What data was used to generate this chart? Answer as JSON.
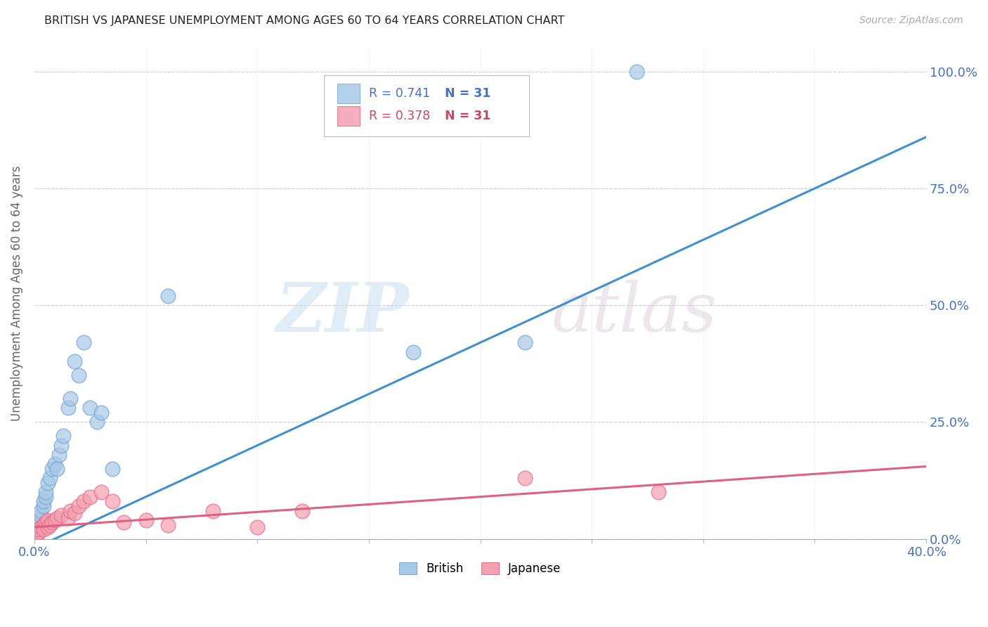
{
  "title": "BRITISH VS JAPANESE UNEMPLOYMENT AMONG AGES 60 TO 64 YEARS CORRELATION CHART",
  "source": "Source: ZipAtlas.com",
  "ylabel": "Unemployment Among Ages 60 to 64 years",
  "xlim": [
    0.0,
    0.4
  ],
  "ylim": [
    0.0,
    1.05
  ],
  "british_R": 0.741,
  "japanese_R": 0.378,
  "N": 31,
  "british_color": "#a8c8e8",
  "japanese_color": "#f4a0b0",
  "british_edge_color": "#7aaad0",
  "japanese_edge_color": "#e87090",
  "british_line_color": "#4090d0",
  "japanese_line_color": "#e06080",
  "legend_label_british": "British",
  "legend_label_japanese": "Japanese",
  "british_x": [
    0.001,
    0.001,
    0.002,
    0.002,
    0.003,
    0.003,
    0.004,
    0.004,
    0.005,
    0.005,
    0.006,
    0.007,
    0.008,
    0.009,
    0.01,
    0.011,
    0.012,
    0.013,
    0.015,
    0.016,
    0.018,
    0.02,
    0.022,
    0.025,
    0.028,
    0.03,
    0.035,
    0.06,
    0.17,
    0.22,
    0.27
  ],
  "british_y": [
    0.01,
    0.02,
    0.03,
    0.04,
    0.05,
    0.06,
    0.07,
    0.08,
    0.09,
    0.1,
    0.12,
    0.13,
    0.15,
    0.16,
    0.15,
    0.18,
    0.2,
    0.22,
    0.28,
    0.3,
    0.38,
    0.35,
    0.42,
    0.28,
    0.25,
    0.27,
    0.15,
    0.52,
    0.4,
    0.42,
    1.0
  ],
  "japanese_x": [
    0.001,
    0.001,
    0.002,
    0.002,
    0.003,
    0.004,
    0.004,
    0.005,
    0.006,
    0.006,
    0.007,
    0.008,
    0.009,
    0.01,
    0.012,
    0.015,
    0.016,
    0.018,
    0.02,
    0.022,
    0.025,
    0.03,
    0.035,
    0.04,
    0.05,
    0.06,
    0.08,
    0.1,
    0.12,
    0.22,
    0.28
  ],
  "japanese_y": [
    0.005,
    0.01,
    0.015,
    0.02,
    0.025,
    0.03,
    0.02,
    0.035,
    0.025,
    0.04,
    0.03,
    0.035,
    0.04,
    0.045,
    0.05,
    0.045,
    0.06,
    0.055,
    0.07,
    0.08,
    0.09,
    0.1,
    0.08,
    0.035,
    0.04,
    0.03,
    0.06,
    0.025,
    0.06,
    0.13,
    0.1
  ],
  "british_line_x0": 0.0,
  "british_line_y0": -0.02,
  "british_line_x1": 0.4,
  "british_line_y1": 0.86,
  "japanese_line_x0": 0.0,
  "japanese_line_y0": 0.025,
  "japanese_line_x1": 0.4,
  "japanese_line_y1": 0.155,
  "background_color": "#ffffff",
  "grid_color": "#cccccc",
  "tick_color_blue": "#4472c4",
  "tick_color_pink": "#cc4466"
}
